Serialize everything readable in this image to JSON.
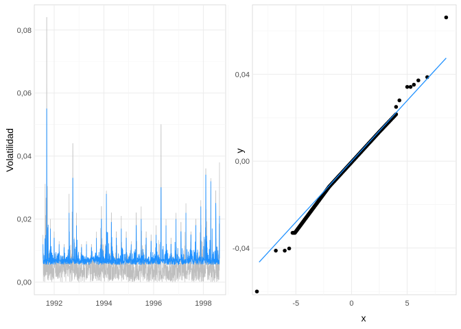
{
  "chart_data": [
    {
      "type": "line",
      "ylabel": "Volatilidad",
      "xlabel": "",
      "x_ticks": [
        "1992",
        "1994",
        "1996",
        "1998"
      ],
      "y_ticks": [
        "0,00",
        "0,02",
        "0,04",
        "0,06",
        "0,08"
      ],
      "xlim": [
        1991.2,
        1998.9
      ],
      "ylim": [
        -0.004,
        0.088
      ],
      "grid": true,
      "series": [
        {
          "color": "#BEBEBE",
          "x": [
            1991.55,
            1991.7,
            1991.85,
            1992.0,
            1992.2,
            1992.4,
            1992.6,
            1992.75,
            1992.9,
            1993.1,
            1993.3,
            1993.5,
            1993.7,
            1993.9,
            1994.1,
            1994.3,
            1994.5,
            1994.7,
            1994.9,
            1995.1,
            1995.3,
            1995.5,
            1995.7,
            1995.9,
            1996.1,
            1996.3,
            1996.5,
            1996.7,
            1996.9,
            1997.1,
            1997.3,
            1997.5,
            1997.7,
            1997.9,
            1998.1,
            1998.3,
            1998.5,
            1998.65
          ],
          "peaks": [
            0.015,
            0.084,
            0.02,
            0.016,
            0.013,
            0.012,
            0.028,
            0.044,
            0.022,
            0.012,
            0.013,
            0.012,
            0.016,
            0.024,
            0.029,
            0.022,
            0.016,
            0.021,
            0.016,
            0.013,
            0.022,
            0.024,
            0.016,
            0.015,
            0.018,
            0.05,
            0.02,
            0.014,
            0.022,
            0.019,
            0.025,
            0.016,
            0.02,
            0.026,
            0.036,
            0.033,
            0.029,
            0.038
          ],
          "base_low": 0.0,
          "base_high": 0.006
        },
        {
          "color": "#1E90FF",
          "x": [
            1991.55,
            1991.7,
            1991.85,
            1992.0,
            1992.2,
            1992.4,
            1992.6,
            1992.75,
            1992.9,
            1993.1,
            1993.3,
            1993.5,
            1993.7,
            1993.9,
            1994.1,
            1994.3,
            1994.5,
            1994.7,
            1994.9,
            1995.1,
            1995.3,
            1995.5,
            1995.7,
            1995.9,
            1996.1,
            1996.3,
            1996.5,
            1996.7,
            1996.9,
            1997.1,
            1997.3,
            1997.5,
            1997.7,
            1997.9,
            1998.1,
            1998.3,
            1998.5,
            1998.65
          ],
          "peaks": [
            0.012,
            0.055,
            0.017,
            0.014,
            0.012,
            0.011,
            0.022,
            0.033,
            0.018,
            0.011,
            0.012,
            0.011,
            0.014,
            0.02,
            0.028,
            0.019,
            0.014,
            0.017,
            0.014,
            0.012,
            0.018,
            0.02,
            0.014,
            0.013,
            0.015,
            0.03,
            0.018,
            0.012,
            0.02,
            0.016,
            0.022,
            0.015,
            0.018,
            0.024,
            0.034,
            0.032,
            0.025,
            0.021
          ],
          "base_low": 0.0055,
          "base_high": 0.0075
        }
      ]
    },
    {
      "type": "scatter",
      "xlabel": "x",
      "ylabel": "y",
      "x_ticks": [
        "-5",
        "0",
        "5"
      ],
      "y_ticks": [
        "-0,04",
        "0,00",
        "0,04"
      ],
      "xlim": [
        -8.9,
        9.4
      ],
      "ylim": [
        -0.0615,
        0.072
      ],
      "grid": true,
      "points": {
        "color": "#000000",
        "outliers_x": [
          -8.5,
          -6.8,
          -6.0,
          -5.6,
          4.0,
          4.3,
          5.0,
          5.3,
          5.6,
          6.0,
          6.8,
          8.5
        ],
        "outliers_y": [
          -0.06,
          -0.0412,
          -0.0412,
          -0.0402,
          0.025,
          0.028,
          0.0342,
          0.0342,
          0.0352,
          0.0372,
          0.0387,
          0.0662
        ],
        "body_x_range": [
          -5.3,
          4.0
        ],
        "body_y_range": [
          -0.033,
          0.025
        ]
      },
      "reference_line": {
        "color": "#1E90FF",
        "x": [
          -8.3,
          8.5
        ],
        "y": [
          -0.0465,
          0.0475
        ]
      }
    }
  ]
}
